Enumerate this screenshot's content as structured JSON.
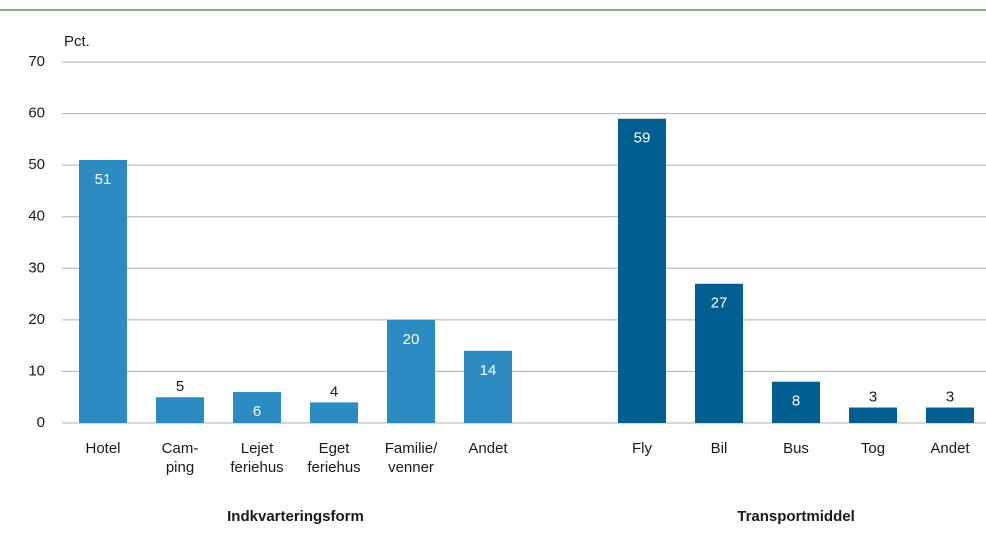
{
  "chart_data": {
    "type": "bar",
    "y_label": "Pct.",
    "ylim": [
      0,
      70
    ],
    "yticks": [
      0,
      10,
      20,
      30,
      40,
      50,
      60,
      70
    ],
    "grid": true,
    "groups": [
      {
        "name": "Indkvarteringsform",
        "color": "#2b8bc3",
        "categories": [
          [
            "Hotel"
          ],
          [
            "Cam-",
            "ping"
          ],
          [
            "Lejet",
            "feriehus"
          ],
          [
            "Eget",
            "feriehus"
          ],
          [
            "Familie/",
            "venner"
          ],
          [
            "Andet"
          ]
        ],
        "values": [
          51,
          5,
          6,
          4,
          20,
          14
        ]
      },
      {
        "name": "Transportmiddel",
        "color": "#005f91",
        "categories": [
          [
            "Fly"
          ],
          [
            "Bil"
          ],
          [
            "Bus"
          ],
          [
            "Tog"
          ],
          [
            "Andet"
          ]
        ],
        "values": [
          59,
          27,
          8,
          3,
          3
        ]
      }
    ]
  }
}
